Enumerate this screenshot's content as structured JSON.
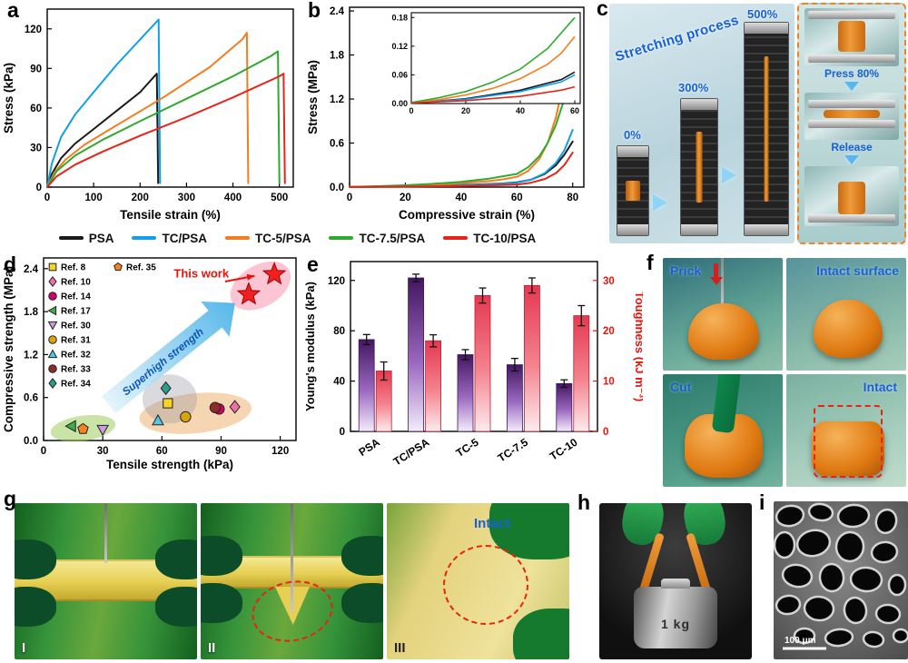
{
  "panel_labels": {
    "a": "a",
    "b": "b",
    "c": "c",
    "d": "d",
    "e": "e",
    "f": "f",
    "g": "g",
    "h": "h",
    "i": "i"
  },
  "accent_colors": {
    "label_blue": "#1661d8",
    "alert_red": "#e8240c"
  },
  "legend_main": {
    "items": [
      {
        "label": "PSA",
        "color": "#1a1a1a"
      },
      {
        "label": "TC/PSA",
        "color": "#0fa0e8"
      },
      {
        "label": "TC-5/PSA",
        "color": "#f57c1f"
      },
      {
        "label": "TC-7.5/PSA",
        "color": "#2faa2f"
      },
      {
        "label": "TC-10/PSA",
        "color": "#e8231a"
      }
    ]
  },
  "chart_data": [
    {
      "id": "a",
      "type": "line",
      "title": "",
      "xlabel": "Tensile strain (%)",
      "ylabel": "Stress (kPa)",
      "xlim": [
        0,
        530
      ],
      "ylim": [
        0,
        135
      ],
      "xticks": [
        0,
        100,
        200,
        300,
        400,
        500
      ],
      "yticks": [
        0,
        30,
        60,
        90,
        120
      ],
      "series": [
        {
          "name": "PSA",
          "color": "#1a1a1a",
          "points": [
            [
              0,
              0
            ],
            [
              10,
              10
            ],
            [
              30,
              22
            ],
            [
              60,
              33
            ],
            [
              100,
              44
            ],
            [
              150,
              58
            ],
            [
              200,
              72
            ],
            [
              236,
              86
            ],
            [
              239,
              3
            ]
          ]
        },
        {
          "name": "TC/PSA",
          "color": "#0fa0e8",
          "points": [
            [
              0,
              0
            ],
            [
              10,
              18
            ],
            [
              30,
              38
            ],
            [
              60,
              55
            ],
            [
              100,
              72
            ],
            [
              150,
              93
            ],
            [
              200,
              112
            ],
            [
              240,
              127
            ],
            [
              243,
              3
            ]
          ]
        },
        {
          "name": "TC-5/PSA",
          "color": "#f57c1f",
          "points": [
            [
              0,
              0
            ],
            [
              15,
              11
            ],
            [
              40,
              21
            ],
            [
              80,
              32
            ],
            [
              150,
              47
            ],
            [
              250,
              68
            ],
            [
              350,
              91
            ],
            [
              420,
              112
            ],
            [
              430,
              117
            ],
            [
              433,
              3
            ]
          ]
        },
        {
          "name": "TC-7.5/PSA",
          "color": "#2faa2f",
          "points": [
            [
              0,
              0
            ],
            [
              20,
              12
            ],
            [
              60,
              24
            ],
            [
              120,
              36
            ],
            [
              200,
              50
            ],
            [
              300,
              67
            ],
            [
              400,
              84
            ],
            [
              480,
              99
            ],
            [
              497,
              103
            ],
            [
              500,
              3
            ]
          ]
        },
        {
          "name": "TC-10/PSA",
          "color": "#e8231a",
          "points": [
            [
              0,
              0
            ],
            [
              20,
              8
            ],
            [
              60,
              17
            ],
            [
              120,
              27
            ],
            [
              200,
              39
            ],
            [
              300,
              53
            ],
            [
              400,
              68
            ],
            [
              500,
              84
            ],
            [
              509,
              86
            ],
            [
              512,
              3
            ]
          ]
        }
      ]
    },
    {
      "id": "b",
      "type": "line",
      "title": "",
      "xlabel": "Compressive strain (%)",
      "ylabel": "Stress (MPa)",
      "xlim": [
        0,
        84
      ],
      "ylim": [
        0,
        2.45
      ],
      "xticks": [
        0,
        20,
        40,
        60,
        80
      ],
      "yticks": [
        0.0,
        0.6,
        1.2,
        1.8,
        2.4
      ],
      "series": [
        {
          "name": "PSA",
          "color": "#1a1a1a",
          "points": [
            [
              0,
              0.001
            ],
            [
              20,
              0.01
            ],
            [
              40,
              0.028
            ],
            [
              55,
              0.05
            ],
            [
              60,
              0.066
            ],
            [
              65,
              0.1
            ],
            [
              70,
              0.18
            ],
            [
              74,
              0.3
            ],
            [
              77,
              0.44
            ],
            [
              80,
              0.62
            ]
          ]
        },
        {
          "name": "TC/PSA",
          "color": "#0fa0e8",
          "points": [
            [
              0,
              0.001
            ],
            [
              20,
              0.009
            ],
            [
              40,
              0.025
            ],
            [
              55,
              0.045
            ],
            [
              60,
              0.06
            ],
            [
              65,
              0.1
            ],
            [
              70,
              0.19
            ],
            [
              74,
              0.33
            ],
            [
              77,
              0.5
            ],
            [
              80,
              0.78
            ]
          ]
        },
        {
          "name": "TC-5/PSA",
          "color": "#f57c1f",
          "points": [
            [
              0,
              0.002
            ],
            [
              10,
              0.008
            ],
            [
              20,
              0.018
            ],
            [
              30,
              0.032
            ],
            [
              40,
              0.052
            ],
            [
              50,
              0.082
            ],
            [
              55,
              0.105
            ],
            [
              60,
              0.14
            ],
            [
              64,
              0.22
            ],
            [
              68,
              0.38
            ],
            [
              71,
              0.6
            ],
            [
              74,
              0.95
            ],
            [
              76,
              1.3
            ],
            [
              78,
              1.75
            ],
            [
              79,
              2.0
            ],
            [
              80,
              2.3
            ]
          ]
        },
        {
          "name": "TC-7.5/PSA",
          "color": "#2faa2f",
          "points": [
            [
              0,
              0.002
            ],
            [
              10,
              0.012
            ],
            [
              20,
              0.025
            ],
            [
              30,
              0.045
            ],
            [
              40,
              0.072
            ],
            [
              50,
              0.115
            ],
            [
              60,
              0.18
            ],
            [
              64,
              0.27
            ],
            [
              68,
              0.42
            ],
            [
              71,
              0.6
            ],
            [
              74,
              0.85
            ],
            [
              77,
              1.2
            ],
            [
              79,
              1.4
            ],
            [
              80,
              1.55
            ]
          ]
        },
        {
          "name": "TC-10/PSA",
          "color": "#e8231a",
          "points": [
            [
              0,
              0.001
            ],
            [
              20,
              0.006
            ],
            [
              40,
              0.015
            ],
            [
              55,
              0.028
            ],
            [
              60,
              0.035
            ],
            [
              65,
              0.06
            ],
            [
              70,
              0.11
            ],
            [
              74,
              0.19
            ],
            [
              77,
              0.3
            ],
            [
              80,
              0.47
            ]
          ]
        }
      ],
      "inset": {
        "xlim": [
          0,
          62
        ],
        "ylim": [
          0,
          0.19
        ],
        "xticks": [
          0,
          20,
          40,
          60
        ],
        "yticks": [
          0.0,
          0.06,
          0.12,
          0.18
        ]
      }
    },
    {
      "id": "d",
      "type": "scatter",
      "xlabel": "Tensile strength (kPa)",
      "ylabel": "Compressive strength (MPa)",
      "xlim": [
        0,
        128
      ],
      "ylim": [
        0,
        2.55
      ],
      "xticks": [
        0,
        30,
        60,
        90,
        120
      ],
      "yticks": [
        0.0,
        0.6,
        1.2,
        1.8,
        2.4
      ],
      "annotation": "This work",
      "arrow_label": "Superhigh strength",
      "legend_col1": [
        "Ref. 8",
        "Ref. 10",
        "Ref. 14",
        "Ref. 17",
        "Ref. 30",
        "Ref. 31",
        "Ref. 32",
        "Ref. 33",
        "Ref. 34"
      ],
      "legend_col2": [
        "Ref. 35"
      ],
      "points": [
        {
          "label": "Ref. 8",
          "marker": "square",
          "color": "#f5d327",
          "x": 63,
          "y": 0.52
        },
        {
          "label": "Ref. 10",
          "marker": "diamond",
          "color": "#f06eaa",
          "x": 97,
          "y": 0.47
        },
        {
          "label": "Ref. 14",
          "marker": "circle",
          "color": "#d4006a",
          "x": 89,
          "y": 0.44
        },
        {
          "label": "Ref. 17",
          "marker": "triangle-left",
          "color": "#3fae49",
          "x": 14,
          "y": 0.2
        },
        {
          "label": "Ref. 30",
          "marker": "triangle-down",
          "color": "#c89ae0",
          "x": 30,
          "y": 0.15
        },
        {
          "label": "Ref. 31",
          "marker": "circle",
          "color": "#d9a50f",
          "x": 72,
          "y": 0.33
        },
        {
          "label": "Ref. 32",
          "marker": "triangle-up",
          "color": "#4fc8e8",
          "x": 58,
          "y": 0.28
        },
        {
          "label": "Ref. 33",
          "marker": "circle",
          "color": "#8f2b2b",
          "x": 87,
          "y": 0.46
        },
        {
          "label": "Ref. 34",
          "marker": "diamond",
          "color": "#2a9d8f",
          "x": 62,
          "y": 0.73
        },
        {
          "label": "Ref. 35",
          "marker": "pentagon",
          "color": "#f58220",
          "x": 20,
          "y": 0.16
        },
        {
          "label": "This work",
          "marker": "star",
          "color": "#ef2020",
          "x": 104,
          "y": 2.04
        },
        {
          "label": "This work",
          "marker": "star",
          "color": "#ef2020",
          "x": 117,
          "y": 2.32
        }
      ]
    },
    {
      "id": "e",
      "type": "bar-dual",
      "categories": [
        "PSA",
        "TC/PSA",
        "TC-5",
        "TC-7.5",
        "TC-10"
      ],
      "left": {
        "label": "Young's modulus (kPa)",
        "lim": [
          0,
          135
        ],
        "ticks": [
          0,
          40,
          80,
          120
        ],
        "values": [
          73,
          122,
          61,
          53,
          38
        ],
        "errors": [
          4,
          3,
          4,
          5,
          3
        ]
      },
      "right": {
        "label": "Toughness (kJ m⁻³)",
        "lim": [
          0,
          33.75
        ],
        "ticks": [
          0,
          10,
          20,
          30
        ],
        "values": [
          12,
          18,
          27,
          29,
          23
        ],
        "errors": [
          1.8,
          1.2,
          1.5,
          1.5,
          2
        ]
      }
    }
  ],
  "panel_c": {
    "title": "Stretching process",
    "strain_labels": [
      "0%",
      "300%",
      "500%"
    ],
    "press_label": "Press 80%",
    "release_label": "Release"
  },
  "panel_f": {
    "labels": [
      "Prick",
      "Intact surface",
      "Cut",
      "Intact"
    ]
  },
  "panel_g": {
    "labels": [
      "I",
      "II",
      "III"
    ],
    "intact_label": "Intact"
  },
  "panel_h": {
    "weight_label": "1 kg"
  },
  "panel_i": {
    "scale_label": "100 μm"
  }
}
